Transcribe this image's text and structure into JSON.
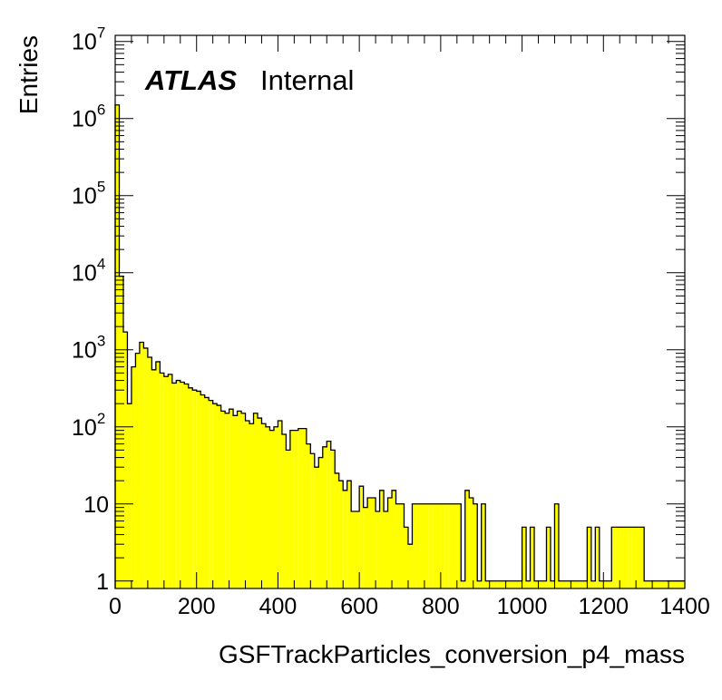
{
  "chart_data": {
    "type": "bar",
    "style": "histogram-step-filled",
    "xlabel": "GSFTrackParticles_conversion_p4_mass",
    "ylabel": "Entries",
    "xlim": [
      0,
      1400
    ],
    "ylim": [
      0.8,
      12000000
    ],
    "y_scale": "log",
    "grid": false,
    "fill_color": "#ffff00",
    "line_color": "#000000",
    "bin_width": 10,
    "x_ticks": [
      0,
      200,
      400,
      600,
      800,
      1000,
      1200,
      1400
    ],
    "y_ticks": [
      {
        "value": 1,
        "base": "1",
        "exp": ""
      },
      {
        "value": 10,
        "base": "10",
        "exp": ""
      },
      {
        "value": 100,
        "base": "10",
        "exp": "2"
      },
      {
        "value": 1000,
        "base": "10",
        "exp": "3"
      },
      {
        "value": 10000,
        "base": "10",
        "exp": "4"
      },
      {
        "value": 100000,
        "base": "10",
        "exp": "5"
      },
      {
        "value": 1000000,
        "base": "10",
        "exp": "6"
      },
      {
        "value": 10000000,
        "base": "10",
        "exp": "7"
      }
    ],
    "label_atlas": "ATLAS",
    "label_status": "Internal",
    "values": [
      1500000,
      9000,
      1700,
      200,
      600,
      900,
      1250,
      1050,
      800,
      550,
      700,
      500,
      450,
      480,
      370,
      400,
      380,
      360,
      320,
      300,
      290,
      260,
      240,
      220,
      200,
      190,
      160,
      150,
      170,
      140,
      160,
      150,
      120,
      110,
      150,
      130,
      110,
      100,
      90,
      100,
      120,
      80,
      50,
      90,
      90,
      95,
      95,
      60,
      45,
      30,
      40,
      55,
      65,
      50,
      25,
      20,
      15,
      20,
      8,
      8,
      17,
      9,
      12,
      12,
      8,
      15,
      8,
      12,
      15,
      10,
      10,
      5,
      3,
      10,
      10,
      10,
      10,
      10,
      10,
      10,
      10,
      10,
      10,
      10,
      10,
      1,
      15,
      12,
      10,
      1,
      10,
      1,
      1,
      1,
      1,
      1,
      1,
      1,
      1,
      1,
      5,
      1,
      5,
      1,
      1,
      1,
      5,
      1,
      10,
      1,
      1,
      1,
      1,
      1,
      1,
      1,
      5,
      1,
      5,
      1,
      1,
      1,
      5,
      5,
      5,
      5,
      5,
      5,
      5,
      5,
      1,
      1,
      1,
      1,
      1,
      1,
      1,
      1,
      1,
      1
    ]
  }
}
